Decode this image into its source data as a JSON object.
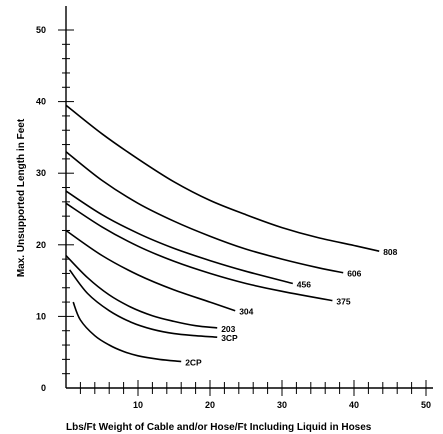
{
  "chart_data": {
    "type": "line",
    "title": "",
    "xlabel": "Lbs/Ft Weight of Cable and/or Hose/Ft Including Liquid in Hoses",
    "ylabel": "Max. Unsupported Length in Feet",
    "xlim": [
      0,
      50
    ],
    "ylim": [
      0,
      50
    ],
    "x_ticks": [
      10,
      20,
      30,
      40,
      50
    ],
    "y_ticks": [
      0,
      10,
      20,
      30,
      40,
      50
    ],
    "x_minor_step": 2,
    "y_minor_step": 2,
    "grid": false,
    "legend": "none",
    "series": [
      {
        "name": "808",
        "x": [
          0,
          5,
          10,
          15,
          20,
          25,
          30,
          35,
          40,
          43.5
        ],
        "y": [
          39.5,
          35.5,
          32,
          28.8,
          26.2,
          24.2,
          22.4,
          21,
          19.9,
          19.1
        ]
      },
      {
        "name": "606",
        "x": [
          0,
          5,
          10,
          15,
          20,
          25,
          30,
          35,
          38.5
        ],
        "y": [
          33,
          29,
          25.8,
          23.3,
          21.2,
          19.4,
          18,
          16.8,
          16.1
        ]
      },
      {
        "name": "456",
        "x": [
          0,
          5,
          10,
          15,
          20,
          25,
          31.5
        ],
        "y": [
          27.5,
          24.2,
          21.6,
          19.5,
          17.8,
          16.3,
          14.6
        ]
      },
      {
        "name": "375",
        "x": [
          0,
          5,
          10,
          15,
          20,
          25,
          30,
          37
        ],
        "y": [
          25.8,
          22.5,
          19.8,
          17.7,
          16,
          14.6,
          13.5,
          12.2
        ]
      },
      {
        "name": "304",
        "x": [
          0,
          5,
          10,
          15,
          20,
          23.5
        ],
        "y": [
          22,
          18.5,
          15.8,
          13.7,
          12,
          10.8
        ]
      },
      {
        "name": "203",
        "x": [
          0,
          3,
          6,
          9,
          12,
          15,
          18,
          21
        ],
        "y": [
          18.5,
          15.4,
          13,
          11.3,
          10.1,
          9.3,
          8.7,
          8.4
        ]
      },
      {
        "name": "3CP",
        "x": [
          0.5,
          3,
          6,
          9,
          12,
          15,
          18,
          21
        ],
        "y": [
          16.5,
          13.2,
          10.8,
          9.2,
          8.2,
          7.6,
          7.3,
          7.1
        ]
      },
      {
        "name": "2CP",
        "x": [
          1,
          2,
          4,
          6,
          8,
          10,
          13,
          16
        ],
        "y": [
          12,
          9.5,
          7.3,
          6,
          5.1,
          4.5,
          4,
          3.7
        ]
      }
    ]
  }
}
